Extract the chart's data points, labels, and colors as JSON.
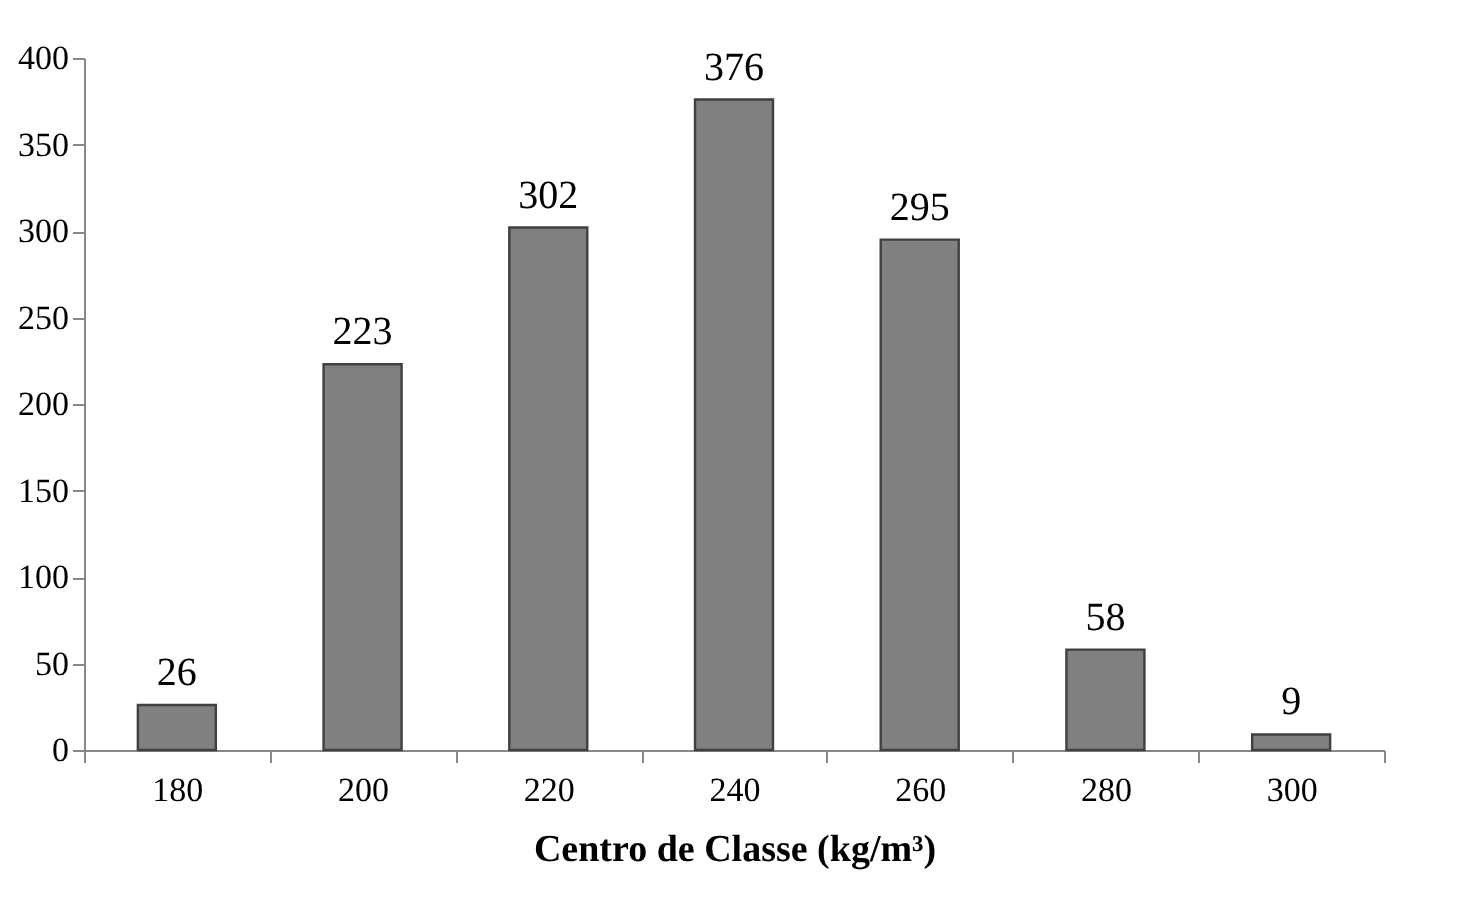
{
  "chart_data": {
    "type": "bar",
    "xlabel": "Centro de Classe (kg/m³)",
    "categories": [
      "180",
      "200",
      "220",
      "240",
      "260",
      "280",
      "300"
    ],
    "values": [
      26,
      223,
      302,
      376,
      295,
      58,
      9
    ],
    "color": "#808080",
    "ylim": [
      0,
      400
    ],
    "yticks": [
      0,
      50,
      100,
      150,
      200,
      250,
      300,
      350,
      400
    ],
    "grid": false,
    "data_labels": true
  }
}
